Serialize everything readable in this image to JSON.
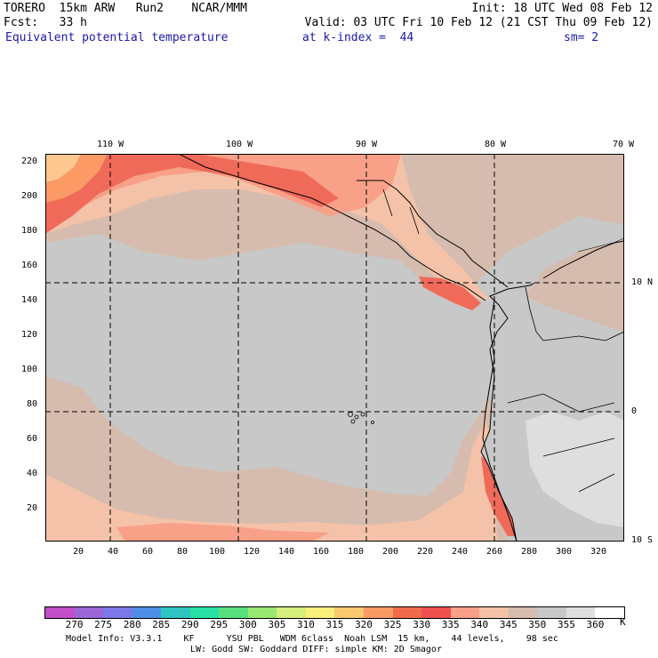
{
  "header": {
    "line1_left": "TORERO  15km ARW   Run2    NCAR/MMM",
    "line1_right": "Init: 18 UTC Wed 08 Feb 12",
    "line2_left": "Fcst:   33 h",
    "line2_right": "Valid: 03 UTC Fri 10 Feb 12 (21 CST Thu 09 Feb 12)",
    "line3_field": "Equivalent potential temperature",
    "line3_level": "at k-index =  44",
    "line3_sm": "sm= 2"
  },
  "map": {
    "lon_labels": [
      "110 W",
      "100 W",
      "90 W",
      "80 W",
      "70 W"
    ],
    "lat_labels": [
      "10 N",
      "0",
      "10 S"
    ],
    "y_ticks": [
      "220",
      "200",
      "180",
      "160",
      "140",
      "120",
      "100",
      "80",
      "60",
      "40",
      "20"
    ],
    "x_ticks": [
      "20",
      "40",
      "60",
      "80",
      "100",
      "120",
      "140",
      "160",
      "180",
      "200",
      "220",
      "240",
      "260",
      "280",
      "300",
      "320"
    ],
    "colors": {
      "ocean": "#c8c8c8",
      "warm_ocean": "#d6bcae",
      "band_340": "#f4c2a8",
      "band_335": "#f8a088",
      "band_330": "#f06a5a",
      "band_325": "#f26a4c",
      "band_320": "#fb9a64",
      "band_315": "#fcc890",
      "highland": "#eeeeee",
      "coast": "#000000",
      "grid": "#000000"
    }
  },
  "colorbar": {
    "colors": [
      "#c24ec8",
      "#9a66d8",
      "#7c78ea",
      "#4e8ee8",
      "#2ec4c0",
      "#28e0a4",
      "#58e080",
      "#9ae874",
      "#d6ee7c",
      "#faf07c",
      "#fcc870",
      "#fb9a64",
      "#f26a4c",
      "#ee5050",
      "#f8a088",
      "#f4c2a8",
      "#d6bcae",
      "#c8c8c8",
      "#dedede",
      "#ffffff"
    ],
    "labels": [
      "270",
      "275",
      "280",
      "285",
      "290",
      "295",
      "300",
      "305",
      "310",
      "315",
      "320",
      "325",
      "330",
      "335",
      "340",
      "345",
      "350",
      "355",
      "360"
    ],
    "unit": "K"
  },
  "footer": {
    "line1": "Model Info: V3.3.1    KF      YSU PBL   WDM 6class  Noah LSM  15 km,    44 levels,    98 sec",
    "line2": "LW: Godd SW: Goddard DIFF: simple KM: 2D Smagor"
  }
}
